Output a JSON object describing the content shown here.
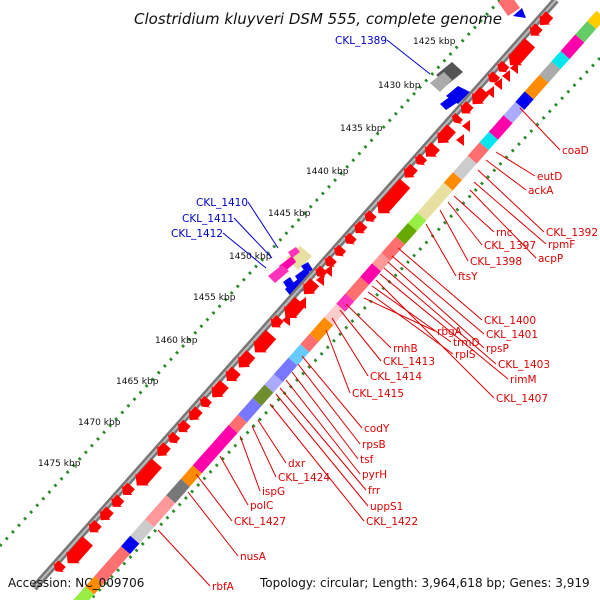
{
  "title": "Clostridium kluyveri DSM 555, complete genome",
  "footer": {
    "accession": "Accession: NC_009706",
    "info": "Topology: circular; Length: 3,964,618 bp; Genes: 3,919"
  },
  "ticks": [
    "1425 kbp",
    "1430 kbp",
    "1435 kbp",
    "1440 kbp",
    "1445 kbp",
    "1450 kbp",
    "1455 kbp",
    "1460 kbp",
    "1465 kbp",
    "1470 kbp",
    "1475 kbp"
  ],
  "blue_labels": [
    "CKL_1389",
    "CKL_1410",
    "CKL_1411",
    "CKL_1412"
  ],
  "red_labels": [
    "coaD",
    "eutD",
    "ackA",
    "CKL_1392",
    "rpmF",
    "acpP",
    "rnc",
    "CKL_1397",
    "CKL_1398",
    "ftsY",
    "CKL_1400",
    "CKL_1401",
    "rpsP",
    "CKL_1403",
    "rimM",
    "CKL_1407",
    "trmD",
    "rplS",
    "rbgA",
    "rnhB",
    "CKL_1413",
    "CKL_1414",
    "CKL_1415",
    "codY",
    "rpsB",
    "tsf",
    "pyrH",
    "frr",
    "uppS1",
    "CKL_1422",
    "dxr",
    "CKL_1424",
    "ispG",
    "polC",
    "CKL_1427",
    "nusA",
    "rbfA"
  ],
  "colors": {
    "gene_forward": "#ff0000",
    "gene_reverse": "#0000ee",
    "label_blue": "#0000cc",
    "label_red": "#dd0000",
    "tick_dots": "#2a8a2a",
    "backbone": "#777777"
  },
  "icons": [
    "gene-arrow",
    "track-ribbon",
    "leader-line"
  ]
}
